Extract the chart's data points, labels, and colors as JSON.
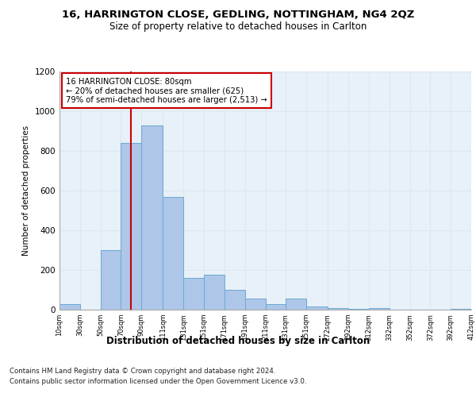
{
  "title1": "16, HARRINGTON CLOSE, GEDLING, NOTTINGHAM, NG4 2QZ",
  "title2": "Size of property relative to detached houses in Carlton",
  "xlabel": "Distribution of detached houses by size in Carlton",
  "ylabel": "Number of detached properties",
  "footer1": "Contains HM Land Registry data © Crown copyright and database right 2024.",
  "footer2": "Contains public sector information licensed under the Open Government Licence v3.0.",
  "annotation_line1": "16 HARRINGTON CLOSE: 80sqm",
  "annotation_line2": "← 20% of detached houses are smaller (625)",
  "annotation_line3": "79% of semi-detached houses are larger (2,513) →",
  "property_size": 80,
  "bar_left_edges": [
    10,
    30,
    50,
    70,
    90,
    111,
    131,
    151,
    171,
    191,
    211,
    231,
    251,
    272,
    292,
    312,
    332,
    352,
    372,
    392
  ],
  "bar_widths": [
    20,
    20,
    20,
    20,
    21,
    20,
    20,
    20,
    20,
    20,
    20,
    20,
    21,
    20,
    20,
    20,
    20,
    20,
    20,
    20
  ],
  "bar_heights": [
    30,
    0,
    300,
    840,
    930,
    570,
    160,
    175,
    100,
    55,
    30,
    55,
    15,
    10,
    5,
    10,
    0,
    0,
    0,
    5
  ],
  "bar_color": "#aec6e8",
  "bar_edge_color": "#6aaad4",
  "vline_color": "#cc0000",
  "vline_x": 80,
  "ylim": [
    0,
    1200
  ],
  "yticks": [
    0,
    200,
    400,
    600,
    800,
    1000,
    1200
  ],
  "grid_color": "#dce8f0",
  "bg_color": "#e8f0f8",
  "annotation_box_color": "#cc0000",
  "tick_labels": [
    "10sqm",
    "30sqm",
    "50sqm",
    "70sqm",
    "90sqm",
    "111sqm",
    "131sqm",
    "151sqm",
    "171sqm",
    "191sqm",
    "211sqm",
    "231sqm",
    "251sqm",
    "272sqm",
    "292sqm",
    "312sqm",
    "332sqm",
    "352sqm",
    "372sqm",
    "392sqm",
    "412sqm"
  ]
}
